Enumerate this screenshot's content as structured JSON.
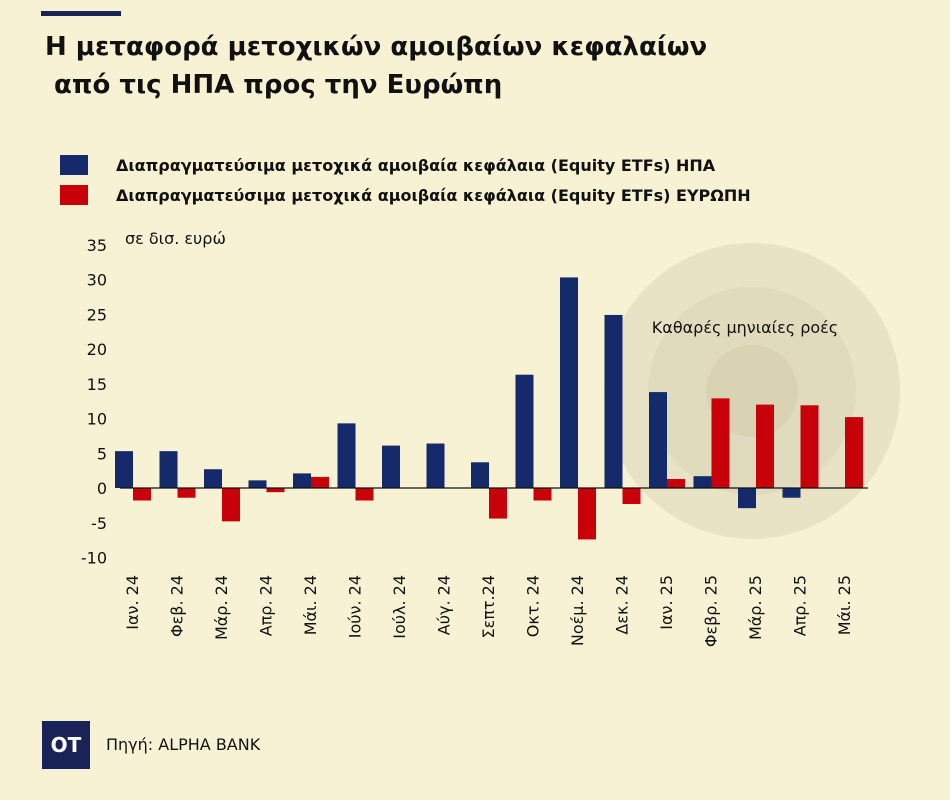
{
  "header": {
    "title_line1": "Η μεταφορά μετοχικών αμοιβαίων κεφαλαίων",
    "title_line2": " από τις ΗΠΑ προς την Ευρώπη"
  },
  "chart_data": {
    "type": "bar",
    "title": "Η μεταφορά μετοχικών αμοιβαίων κεφαλαίων από τις ΗΠΑ προς την Ευρώπη",
    "ylabel": "σε δισ. ευρώ",
    "ylim": [
      -10,
      35
    ],
    "yticks": [
      35,
      30,
      25,
      20,
      15,
      10,
      5,
      0,
      -5,
      -10
    ],
    "legend_position": "top-left",
    "annotation": "Καθαρές μηνιαίες ροές",
    "categories": [
      "Ιαν. 24",
      "Φεβ. 24",
      "Μάρ. 24",
      "Απρ. 24",
      "Μάι. 24",
      "Ιούν. 24",
      "Ιούλ. 24",
      "Αύγ. 24",
      "Σεπτ.24",
      "Οκτ. 24",
      "Νοέμ. 24",
      "Δεκ. 24",
      "Ιαν. 25",
      "Φεβρ. 25",
      "Μάρ. 25",
      "Απρ. 25",
      "Μάι. 25"
    ],
    "series": [
      {
        "name": "Διαπραγματεύσιμα μετοχικά αμοιβαία κεφάλαια (Equity ETFs) ΗΠΑ",
        "color": "#142a6b",
        "values": [
          5.3,
          5.3,
          2.7,
          1.1,
          2.1,
          9.3,
          6.1,
          6.4,
          3.7,
          16.3,
          30.3,
          24.9,
          13.8,
          1.7,
          -2.9,
          -1.4,
          null
        ]
      },
      {
        "name": "Διαπραγματεύσιμα μετοχικά αμοιβαία κεφάλαια (Equity ETFs) ΕΥΡΩΠΗ",
        "color": "#c8000a",
        "values": [
          -1.8,
          -1.4,
          -4.8,
          -0.6,
          1.6,
          -1.8,
          null,
          null,
          -4.4,
          -1.8,
          -7.4,
          -2.3,
          1.3,
          12.9,
          12.0,
          11.9,
          10.2
        ]
      }
    ]
  },
  "footer": {
    "logo": "OT",
    "source": "Πηγή: ALPHA BANK"
  },
  "colors": {
    "background": "#f8f2d4",
    "brand": "#1a2357"
  }
}
